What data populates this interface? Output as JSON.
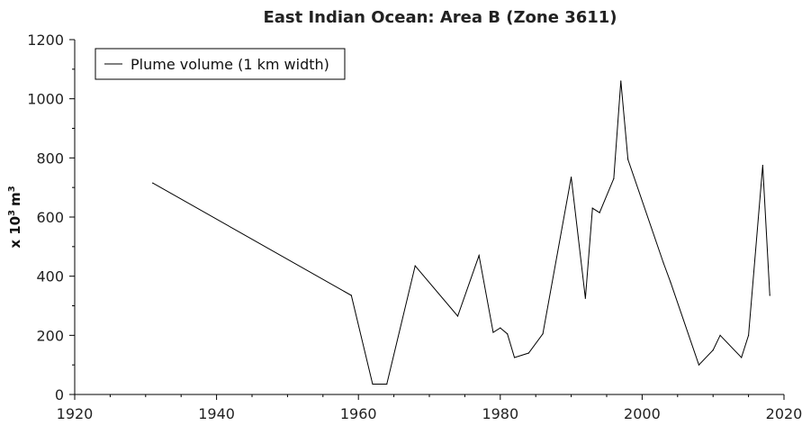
{
  "chart_data": {
    "type": "line",
    "title": "East Indian Ocean: Area B (Zone 3611)",
    "xlabel": "",
    "ylabel_prefix": "x 10",
    "ylabel_exp": "3",
    "ylabel_unit": "m",
    "ylabel_unit_exp": "3",
    "xlim": [
      1920,
      2020
    ],
    "ylim": [
      0,
      1200
    ],
    "xticks": [
      1920,
      1940,
      1960,
      1980,
      2000,
      2020
    ],
    "yticks": [
      0,
      200,
      400,
      600,
      800,
      1000,
      1200
    ],
    "grid": false,
    "legend_position": "top-left",
    "line_color": "#000000",
    "series": [
      {
        "name": "Plume volume (1 km width)",
        "x": [
          1931,
          1959,
          1962,
          1964,
          1968,
          1974,
          1977,
          1979,
          1980,
          1981,
          1982,
          1984,
          1986,
          1990,
          1992,
          1993,
          1994,
          1996,
          1997,
          1998,
          2003,
          2004,
          2008,
          2010,
          2011,
          2014,
          2015,
          2017,
          2018
        ],
        "y": [
          715,
          335,
          35,
          35,
          435,
          265,
          470,
          210,
          225,
          205,
          125,
          140,
          205,
          735,
          325,
          630,
          615,
          730,
          1060,
          795,
          445,
          380,
          100,
          150,
          200,
          125,
          200,
          775,
          335
        ]
      }
    ]
  }
}
